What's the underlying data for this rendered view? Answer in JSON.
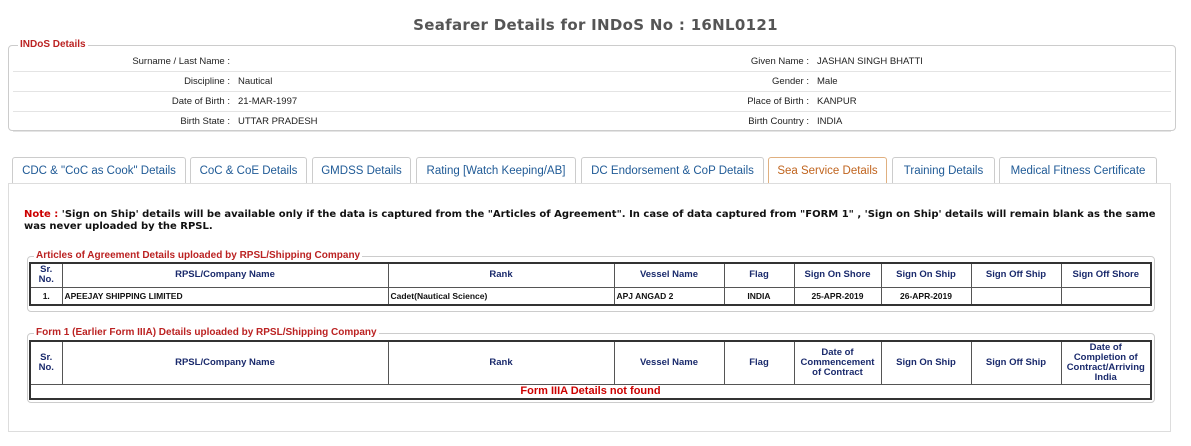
{
  "header": {
    "title": "Seafarer Details for INDoS No : 16NL0121"
  },
  "indos_details": {
    "legend": "INDoS Details",
    "rows": [
      {
        "left": {
          "label": "Surname / Last Name :"
        },
        "right": {
          "label": "Given Name :",
          "value": "JASHAN SINGH BHATTI"
        }
      },
      {
        "left": {
          "label": "Discipline :",
          "value": "Nautical"
        },
        "right": {
          "label": "Gender :",
          "value": "Male"
        }
      },
      {
        "left": {
          "label": "Date of Birth :",
          "value": "21-MAR-1997"
        },
        "right": {
          "label": "Place of Birth :",
          "value": "KANPUR"
        }
      },
      {
        "left": {
          "label": "Birth State :",
          "value": "UTTAR PRADESH"
        },
        "right": {
          "label": "Birth Country :",
          "value": "INDIA"
        }
      }
    ]
  },
  "tabs": {
    "items": [
      "CDC & \"CoC as Cook\" Details",
      "CoC & CoE Details",
      "GMDSS Details",
      "Rating [Watch Keeping/AB]",
      "DC Endorsement & CoP Details",
      "Sea Service Details",
      "Training Details",
      "Medical Fitness Certificate"
    ],
    "active": 5
  },
  "note": {
    "label": "Note :",
    "text": "'Sign on Ship' details will be available only if the data is captured from the \"Articles of Agreement\". In case of data captured from \"FORM 1\" , 'Sign on Ship' details will remain blank as the same was never uploaded by the RPSL."
  },
  "articles": {
    "legend": "Articles of Agreement Details uploaded by RPSL/Shipping Company",
    "columns": [
      "Sr. No.",
      "RPSL/Company Name",
      "Rank",
      "Vessel Name",
      "Flag",
      "Sign On Shore",
      "Sign On Ship",
      "Sign Off Ship",
      "Sign Off Shore"
    ],
    "rows": [
      [
        "1.",
        "APEEJAY SHIPPING LIMITED",
        "Cadet(Nautical Science)",
        "APJ ANGAD 2",
        "INDIA",
        "25-APR-2019",
        "26-APR-2019",
        null,
        null
      ]
    ]
  },
  "form1": {
    "legend": "Form 1 (Earlier Form IIIA) Details uploaded by RPSL/Shipping Company",
    "columns": [
      "Sr. No.",
      "RPSL/Company Name",
      "Rank",
      "Vessel Name",
      "Flag",
      "Date of Commencement of Contract",
      "Sign On Ship",
      "Sign Off Ship",
      "Date of Completion of Contract/Arriving India"
    ],
    "message": "Form IIIA Details not found"
  }
}
